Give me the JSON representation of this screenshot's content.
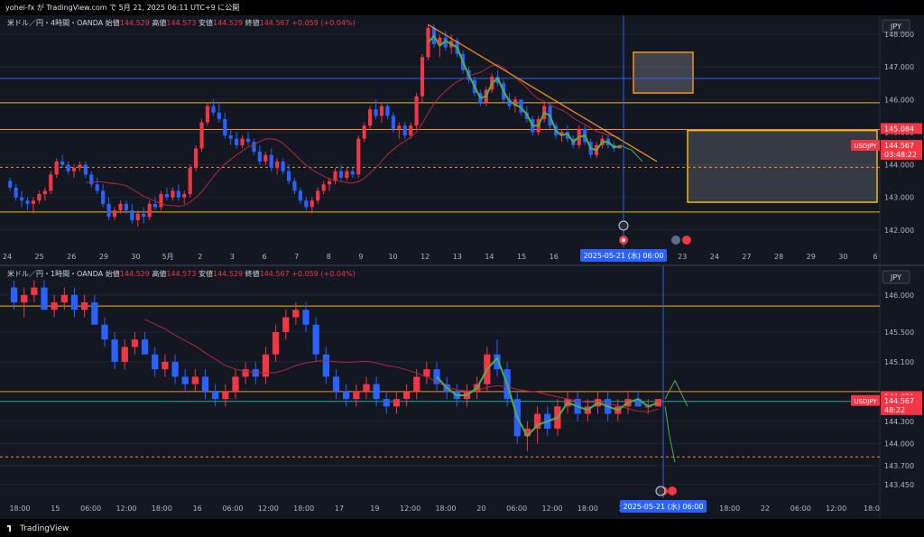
{
  "header": {
    "text": "yohei-fx が TradingView.com で 5月 21, 2025 06:11 UTC+9 に公開"
  },
  "footer": {
    "brand": "TradingView"
  },
  "colors": {
    "bg": "#131722",
    "up": "#f23645",
    "down": "#2962ff",
    "hline": "#f0b90b",
    "blue_line": "#2962ff",
    "ma": "#b2283c",
    "trend": "#f7931a",
    "green": "#4caf50",
    "grid": "#1f2533"
  },
  "chart_data": [
    {
      "type": "candlestick",
      "timeframe": "4時間",
      "symbol": "USDJPY",
      "legend": {
        "name": "米ドル／円・4時間・OANDA",
        "open_label": "始値",
        "open": "144.529",
        "high_label": "高値",
        "high": "144.573",
        "low_label": "安値",
        "low": "144.529",
        "close_label": "終値",
        "close": "144.567",
        "change": "+0.059 (+0.04%)"
      },
      "currency": "JPY",
      "ylim": [
        141.8,
        148.5
      ],
      "y_ticks": [
        "148.000",
        "147.000",
        "146.000",
        "145.000",
        "144.000",
        "143.000",
        "142.000"
      ],
      "x_ticks": [
        "24",
        "25",
        "26",
        "29",
        "30",
        "5月",
        "2",
        "3",
        "6",
        "7",
        "8",
        "9",
        "10",
        "12",
        "13",
        "14",
        "15",
        "16",
        "17",
        "21",
        "22",
        "23",
        "24",
        "27",
        "28",
        "29",
        "30",
        "6"
      ],
      "crosshair_label": "2025-05-21 (水)  06:00",
      "price_tags": [
        {
          "value": 145.084,
          "text": "145.084"
        },
        {
          "value": 144.567,
          "symbol": "USDJPY",
          "text": "144.567",
          "countdown": "03:48:22"
        }
      ],
      "horizontal_lines": [
        {
          "value": 146.65,
          "color": "blue"
        },
        {
          "value": 145.9,
          "color": "yellow"
        },
        {
          "value": 145.08,
          "color": "orange"
        },
        {
          "value": 142.55,
          "color": "yellow"
        }
      ],
      "dashed_lines": [
        {
          "value": 143.92
        }
      ],
      "zones": [
        {
          "y_range": [
            146.2,
            147.45
          ],
          "border": "orange"
        },
        {
          "y_range": [
            142.85,
            145.05
          ],
          "border": "yellow"
        }
      ],
      "ohlc": [
        [
          143.5,
          143.6,
          143.2,
          143.3
        ],
        [
          143.3,
          143.4,
          142.9,
          143.0
        ],
        [
          143.0,
          143.2,
          142.7,
          142.9
        ],
        [
          142.9,
          143.0,
          142.6,
          142.8
        ],
        [
          142.8,
          143.0,
          142.5,
          142.9
        ],
        [
          142.9,
          143.2,
          142.8,
          143.1
        ],
        [
          143.1,
          143.3,
          142.9,
          143.2
        ],
        [
          143.2,
          143.8,
          143.1,
          143.7
        ],
        [
          143.7,
          144.2,
          143.6,
          144.1
        ],
        [
          144.1,
          144.3,
          143.9,
          144.0
        ],
        [
          144.0,
          144.1,
          143.7,
          143.8
        ],
        [
          143.8,
          144.0,
          143.6,
          143.9
        ],
        [
          143.9,
          144.1,
          143.8,
          144.0
        ],
        [
          144.0,
          144.1,
          143.6,
          143.7
        ],
        [
          143.7,
          143.8,
          143.3,
          143.4
        ],
        [
          143.4,
          143.6,
          143.1,
          143.2
        ],
        [
          143.2,
          143.4,
          142.7,
          142.8
        ],
        [
          142.8,
          143.0,
          142.3,
          142.4
        ],
        [
          142.4,
          142.7,
          142.3,
          142.6
        ],
        [
          142.6,
          142.9,
          142.5,
          142.8
        ],
        [
          142.8,
          142.9,
          142.5,
          142.6
        ],
        [
          142.6,
          142.8,
          142.2,
          142.3
        ],
        [
          142.3,
          142.6,
          142.1,
          142.5
        ],
        [
          142.5,
          142.7,
          142.2,
          142.4
        ],
        [
          142.4,
          142.9,
          142.3,
          142.8
        ],
        [
          142.8,
          143.0,
          142.6,
          142.7
        ],
        [
          142.7,
          143.2,
          142.6,
          143.1
        ],
        [
          143.1,
          143.3,
          142.9,
          143.0
        ],
        [
          143.0,
          143.3,
          142.9,
          143.2
        ],
        [
          143.2,
          143.4,
          142.9,
          143.0
        ],
        [
          143.0,
          143.2,
          142.8,
          143.1
        ],
        [
          143.1,
          144.0,
          143.0,
          143.9
        ],
        [
          143.9,
          144.6,
          143.8,
          144.5
        ],
        [
          144.5,
          145.4,
          144.4,
          145.3
        ],
        [
          145.3,
          145.9,
          145.2,
          145.8
        ],
        [
          145.8,
          146.0,
          145.5,
          145.6
        ],
        [
          145.6,
          145.9,
          145.3,
          145.4
        ],
        [
          145.4,
          145.6,
          144.8,
          144.9
        ],
        [
          144.9,
          145.1,
          144.6,
          144.8
        ],
        [
          144.8,
          145.0,
          144.5,
          144.6
        ],
        [
          144.6,
          144.9,
          144.5,
          144.8
        ],
        [
          144.8,
          145.0,
          144.6,
          144.7
        ],
        [
          144.7,
          144.8,
          144.3,
          144.4
        ],
        [
          144.4,
          144.6,
          144.0,
          144.1
        ],
        [
          144.1,
          144.4,
          144.0,
          144.3
        ],
        [
          144.3,
          144.5,
          143.8,
          143.9
        ],
        [
          143.9,
          144.2,
          143.7,
          144.1
        ],
        [
          144.1,
          144.2,
          143.7,
          143.8
        ],
        [
          143.8,
          144.0,
          143.4,
          143.5
        ],
        [
          143.5,
          143.6,
          143.1,
          143.2
        ],
        [
          143.2,
          143.3,
          142.8,
          142.9
        ],
        [
          142.9,
          143.0,
          142.6,
          142.7
        ],
        [
          142.7,
          143.0,
          142.5,
          142.9
        ],
        [
          142.9,
          143.3,
          142.8,
          143.2
        ],
        [
          143.2,
          143.5,
          143.1,
          143.4
        ],
        [
          143.4,
          143.6,
          143.2,
          143.5
        ],
        [
          143.5,
          143.9,
          143.4,
          143.8
        ],
        [
          143.8,
          144.0,
          143.5,
          143.6
        ],
        [
          143.6,
          143.9,
          143.5,
          143.8
        ],
        [
          143.8,
          143.9,
          143.6,
          143.7
        ],
        [
          143.7,
          144.9,
          143.6,
          144.8
        ],
        [
          144.8,
          145.3,
          144.7,
          145.2
        ],
        [
          145.2,
          145.8,
          145.1,
          145.7
        ],
        [
          145.7,
          146.0,
          145.4,
          145.5
        ],
        [
          145.5,
          145.9,
          145.3,
          145.8
        ],
        [
          145.8,
          145.9,
          145.4,
          145.5
        ],
        [
          145.5,
          145.6,
          145.0,
          145.1
        ],
        [
          145.1,
          145.3,
          144.8,
          145.2
        ],
        [
          145.2,
          145.3,
          144.8,
          144.9
        ],
        [
          144.9,
          145.3,
          144.8,
          145.2
        ],
        [
          145.2,
          146.2,
          145.1,
          146.1
        ],
        [
          146.1,
          147.4,
          145.9,
          147.3
        ],
        [
          147.3,
          148.3,
          147.2,
          148.2
        ],
        [
          148.2,
          148.3,
          147.6,
          147.7
        ],
        [
          147.7,
          148.0,
          147.3,
          147.9
        ],
        [
          147.9,
          148.1,
          147.5,
          147.6
        ],
        [
          147.6,
          148.0,
          147.4,
          147.8
        ],
        [
          147.8,
          147.9,
          147.3,
          147.4
        ],
        [
          147.4,
          147.5,
          146.8,
          146.9
        ],
        [
          146.9,
          147.0,
          146.5,
          146.6
        ],
        [
          146.6,
          146.7,
          146.1,
          146.2
        ],
        [
          146.2,
          146.3,
          145.8,
          145.9
        ],
        [
          145.9,
          146.4,
          145.8,
          146.3
        ],
        [
          146.3,
          146.8,
          146.2,
          146.7
        ],
        [
          146.7,
          146.9,
          146.4,
          146.5
        ],
        [
          146.5,
          146.6,
          145.9,
          146.0
        ],
        [
          146.0,
          146.2,
          145.7,
          145.8
        ],
        [
          145.8,
          146.1,
          145.6,
          146.0
        ],
        [
          146.0,
          146.0,
          145.5,
          145.6
        ],
        [
          145.6,
          145.8,
          145.3,
          145.4
        ],
        [
          145.4,
          145.5,
          144.9,
          145.0
        ],
        [
          145.0,
          145.5,
          144.9,
          145.4
        ],
        [
          145.4,
          145.9,
          145.3,
          145.8
        ],
        [
          145.8,
          145.9,
          145.1,
          145.2
        ],
        [
          145.2,
          145.3,
          144.8,
          144.9
        ],
        [
          144.9,
          145.1,
          144.7,
          145.0
        ],
        [
          145.0,
          145.2,
          144.7,
          144.8
        ],
        [
          144.8,
          144.9,
          144.5,
          144.6
        ],
        [
          144.6,
          145.2,
          144.5,
          145.1
        ],
        [
          145.1,
          145.2,
          144.6,
          144.7
        ],
        [
          144.7,
          144.8,
          144.2,
          144.3
        ],
        [
          144.3,
          144.7,
          144.2,
          144.6
        ],
        [
          144.6,
          144.9,
          144.5,
          144.8
        ],
        [
          144.8,
          144.9,
          144.5,
          144.6
        ],
        [
          144.6,
          144.7,
          144.4,
          144.5
        ],
        [
          144.5,
          144.6,
          144.5,
          144.6
        ]
      ]
    },
    {
      "type": "candlestick",
      "timeframe": "1時間",
      "symbol": "USDJPY",
      "legend": {
        "name": "米ドル／円・1時間・OANDA",
        "open_label": "始値",
        "open": "144.529",
        "high_label": "高値",
        "high": "144.573",
        "low_label": "安値",
        "low": "144.529",
        "close_label": "終値",
        "close": "144.567",
        "change": "+0.059 (+0.04%)"
      },
      "currency": "JPY",
      "ylim": [
        143.35,
        146.35
      ],
      "y_ticks": [
        "146.000",
        "145.500",
        "145.100",
        "144.300",
        "144.000",
        "143.700",
        "143.450"
      ],
      "x_ticks": [
        "18:00",
        "15",
        "06:00",
        "12:00",
        "18:00",
        "16",
        "06:00",
        "12:00",
        "18:00",
        "17",
        "19",
        "12:00",
        "18:00",
        "20",
        "06:00",
        "12:00",
        "18:00",
        "21",
        "06:00",
        "12:00",
        "18:00",
        "22",
        "06:00",
        "12:00",
        "18:0"
      ],
      "crosshair_label": "2025-05-21 (水)  06:00",
      "price_tags": [
        {
          "value": 144.621,
          "text": "144.621"
        },
        {
          "value": 144.567,
          "symbol": "USDJPY",
          "text": "144.567",
          "countdown": "48:22"
        }
      ],
      "horizontal_lines": [
        {
          "value": 145.85,
          "color": "yellow"
        },
        {
          "value": 144.7,
          "color": "orange"
        },
        {
          "value": 144.567,
          "color": "teal"
        }
      ],
      "dashed_lines": [
        {
          "value": 143.82
        }
      ],
      "ohlc": [
        [
          146.1,
          146.2,
          145.8,
          145.9
        ],
        [
          145.9,
          146.1,
          145.7,
          146.0
        ],
        [
          146.0,
          146.2,
          145.9,
          146.1
        ],
        [
          146.1,
          146.2,
          145.8,
          145.8
        ],
        [
          145.8,
          146.0,
          145.7,
          145.9
        ],
        [
          145.9,
          146.1,
          145.8,
          146.0
        ],
        [
          146.0,
          146.1,
          145.7,
          145.8
        ],
        [
          145.8,
          146.0,
          145.7,
          145.9
        ],
        [
          145.9,
          146.0,
          145.6,
          145.6
        ],
        [
          145.6,
          145.7,
          145.3,
          145.4
        ],
        [
          145.4,
          145.5,
          145.0,
          145.1
        ],
        [
          145.1,
          145.4,
          145.0,
          145.3
        ],
        [
          145.3,
          145.5,
          145.2,
          145.4
        ],
        [
          145.4,
          145.5,
          145.2,
          145.2
        ],
        [
          145.2,
          145.3,
          144.9,
          145.0
        ],
        [
          145.0,
          145.2,
          144.9,
          145.1
        ],
        [
          145.1,
          145.2,
          144.8,
          144.9
        ],
        [
          144.9,
          145.0,
          144.7,
          144.8
        ],
        [
          144.8,
          145.0,
          144.7,
          144.9
        ],
        [
          144.9,
          145.0,
          144.6,
          144.7
        ],
        [
          144.7,
          144.8,
          144.5,
          144.6
        ],
        [
          144.6,
          144.8,
          144.5,
          144.7
        ],
        [
          144.7,
          145.0,
          144.6,
          144.9
        ],
        [
          144.9,
          145.1,
          144.8,
          145.0
        ],
        [
          145.0,
          145.1,
          144.8,
          144.9
        ],
        [
          144.9,
          145.3,
          144.8,
          145.2
        ],
        [
          145.2,
          145.6,
          145.1,
          145.5
        ],
        [
          145.5,
          145.8,
          145.4,
          145.7
        ],
        [
          145.7,
          145.9,
          145.6,
          145.8
        ],
        [
          145.8,
          145.9,
          145.5,
          145.6
        ],
        [
          145.6,
          145.7,
          145.1,
          145.2
        ],
        [
          145.2,
          145.3,
          144.8,
          144.9
        ],
        [
          144.9,
          145.0,
          144.6,
          144.7
        ],
        [
          144.7,
          144.8,
          144.5,
          144.6
        ],
        [
          144.6,
          144.8,
          144.5,
          144.7
        ],
        [
          144.7,
          144.9,
          144.6,
          144.8
        ],
        [
          144.8,
          144.9,
          144.5,
          144.6
        ],
        [
          144.6,
          144.7,
          144.4,
          144.5
        ],
        [
          144.5,
          144.7,
          144.4,
          144.6
        ],
        [
          144.6,
          144.8,
          144.5,
          144.7
        ],
        [
          144.7,
          145.0,
          144.6,
          144.9
        ],
        [
          144.9,
          145.1,
          144.8,
          145.0
        ],
        [
          145.0,
          145.1,
          144.7,
          144.8
        ],
        [
          144.8,
          144.9,
          144.6,
          144.7
        ],
        [
          144.7,
          144.8,
          144.5,
          144.6
        ],
        [
          144.6,
          144.8,
          144.5,
          144.7
        ],
        [
          144.7,
          144.9,
          144.6,
          144.8
        ],
        [
          144.8,
          145.3,
          144.7,
          145.2
        ],
        [
          145.2,
          145.4,
          144.9,
          145.0
        ],
        [
          145.0,
          145.1,
          144.5,
          144.6
        ],
        [
          144.6,
          144.7,
          144.0,
          144.1
        ],
        [
          144.1,
          144.3,
          143.9,
          144.2
        ],
        [
          144.2,
          144.5,
          144.0,
          144.4
        ],
        [
          144.4,
          144.5,
          144.1,
          144.2
        ],
        [
          144.2,
          144.6,
          144.1,
          144.5
        ],
        [
          144.5,
          144.7,
          144.4,
          144.6
        ],
        [
          144.6,
          144.7,
          144.3,
          144.4
        ],
        [
          144.4,
          144.6,
          144.3,
          144.5
        ],
        [
          144.5,
          144.7,
          144.4,
          144.6
        ],
        [
          144.6,
          144.7,
          144.3,
          144.4
        ],
        [
          144.4,
          144.6,
          144.3,
          144.5
        ],
        [
          144.5,
          144.7,
          144.4,
          144.6
        ],
        [
          144.6,
          144.7,
          144.5,
          144.5
        ],
        [
          144.5,
          144.6,
          144.4,
          144.5
        ],
        [
          144.5,
          144.6,
          144.5,
          144.6
        ]
      ]
    }
  ]
}
